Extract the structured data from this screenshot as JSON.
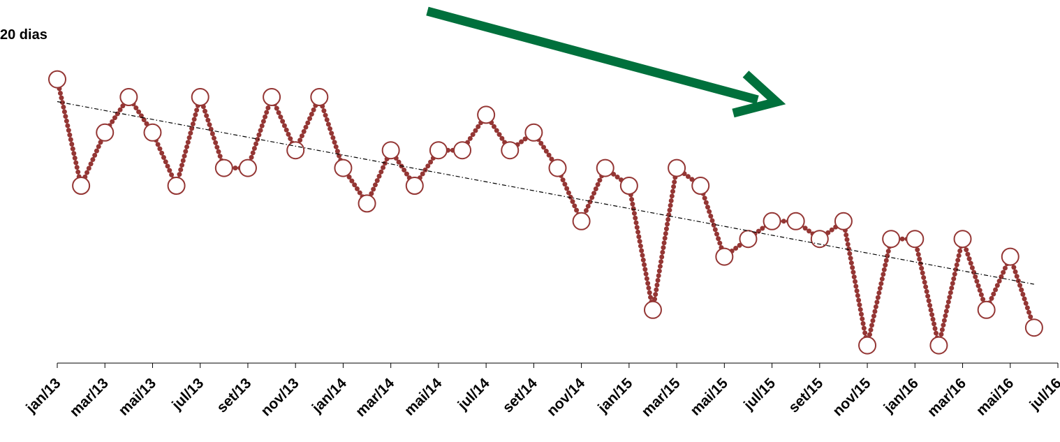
{
  "chart_data": {
    "type": "line",
    "title": "20 dias",
    "categories": [
      "jan/13",
      null,
      "mar/13",
      null,
      "mai/13",
      null,
      "jul/13",
      null,
      "set/13",
      null,
      "nov/13",
      null,
      "jan/14",
      null,
      "mar/14",
      null,
      "mai/14",
      null,
      "jul/14",
      null,
      "set/14",
      null,
      "nov/14",
      null,
      "jan/15",
      null,
      "mar/15",
      null,
      "mai/15",
      null,
      "jul/15",
      null,
      "set/15",
      null,
      "nov/15",
      null,
      "jan/16",
      null,
      "mar/16",
      null,
      "mai/16",
      null,
      "jul/16"
    ],
    "series": [
      {
        "color": "#943634",
        "values": [
          16,
          10,
          13,
          15,
          13,
          10,
          15,
          11,
          11,
          15,
          12,
          15,
          11,
          9,
          12,
          10,
          12,
          12,
          14,
          12,
          13,
          11,
          8,
          11,
          10,
          3,
          11,
          10,
          6,
          7,
          8,
          8,
          7,
          8,
          1,
          7,
          7,
          1,
          7,
          3,
          6,
          2,
          null
        ]
      }
    ],
    "ylim": [
      0,
      20
    ],
    "trendline": true
  }
}
